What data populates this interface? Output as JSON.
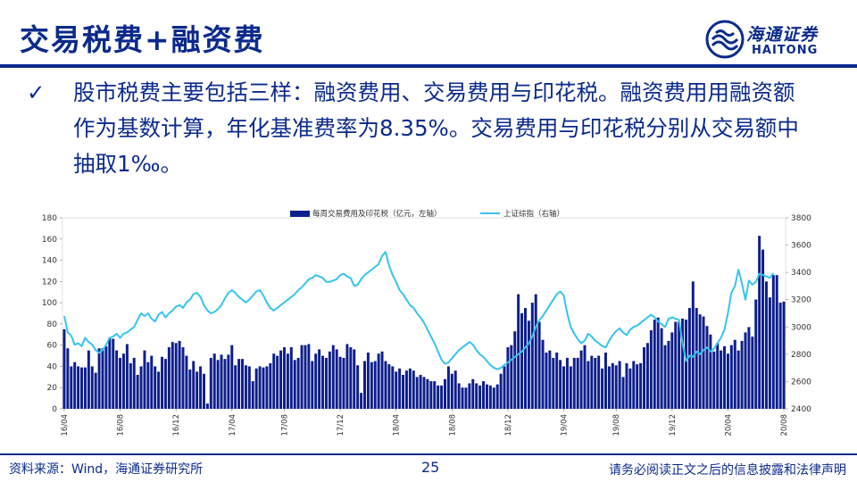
{
  "header": {
    "title": "交易税费+融资费",
    "logo_cn": "海通证券",
    "logo_en": "HAITONG"
  },
  "bullet": {
    "mark": "✓",
    "text": "股市税费主要包括三样：融资费用、交易费用与印花税。融资费用用融资额作为基数计算，年化基准费率为8.35%。交易费用与印花税分别从交易额中抽取1‰。"
  },
  "colors": {
    "bar": "#0d1e8c",
    "line": "#35c4ee",
    "brand": "#0b2a8c"
  },
  "chart_data": {
    "type": "bar+line",
    "x_tick_labels": [
      "16/04",
      "16/08",
      "16/12",
      "17/04",
      "17/08",
      "17/12",
      "18/04",
      "18/08",
      "18/12",
      "19/04",
      "19/08",
      "19/12",
      "20/04",
      "20/08"
    ],
    "y_left": {
      "lim": [
        0,
        180
      ],
      "ticks": [
        0,
        20,
        40,
        60,
        80,
        100,
        120,
        140,
        160,
        180
      ]
    },
    "y_right": {
      "lim": [
        2400,
        3800
      ],
      "ticks": [
        2400,
        2600,
        2800,
        3000,
        3200,
        3400,
        3600,
        3800
      ]
    },
    "series": [
      {
        "name": "每周交易费用及印花税（亿元，左轴）",
        "axis": "left",
        "values": [
          75,
          57,
          40,
          44,
          40,
          39,
          39,
          55,
          40,
          34,
          57,
          57,
          59,
          67,
          66,
          55,
          48,
          52,
          61,
          43,
          48,
          32,
          40,
          55,
          44,
          50,
          40,
          35,
          49,
          47,
          58,
          63,
          62,
          64,
          58,
          50,
          37,
          45,
          35,
          40,
          33,
          5,
          48,
          52,
          46,
          51,
          47,
          51,
          60,
          41,
          47,
          47,
          41,
          40,
          26,
          38,
          40,
          39,
          40,
          43,
          52,
          50,
          55,
          58,
          52,
          58,
          46,
          48,
          60,
          60,
          61,
          45,
          52,
          56,
          50,
          48,
          54,
          60,
          56,
          49,
          48,
          61,
          58,
          56,
          41,
          15,
          45,
          53,
          44,
          45,
          52,
          54,
          45,
          42,
          40,
          35,
          38,
          32,
          36,
          38,
          36,
          30,
          32,
          30,
          28,
          26,
          26,
          22,
          22,
          28,
          40,
          33,
          36,
          24,
          20,
          20,
          24,
          28,
          24,
          22,
          26,
          23,
          22,
          20,
          23,
          33,
          40,
          58,
          60,
          73,
          108,
          90,
          95,
          83,
          100,
          108,
          82,
          65,
          53,
          55,
          48,
          53,
          46,
          40,
          48,
          40,
          48,
          48,
          55,
          60,
          45,
          50,
          48,
          50,
          38,
          53,
          40,
          43,
          41,
          45,
          30,
          43,
          38,
          45,
          42,
          43,
          58,
          62,
          74,
          84,
          86,
          76,
          60,
          64,
          72,
          82,
          82,
          85,
          84,
          95,
          120,
          95,
          89,
          87,
          78,
          70,
          54,
          62,
          55,
          59,
          52,
          60,
          65,
          55,
          64,
          72,
          77,
          68,
          103,
          163,
          150,
          120,
          105,
          126,
          126,
          100,
          101
        ]
      },
      {
        "name": "上证综指（右轴）",
        "axis": "right",
        "values": [
          3080,
          2960,
          2935,
          2870,
          2880,
          2860,
          2920,
          2890,
          2870,
          2830,
          2810,
          2830,
          2870,
          2920,
          2930,
          2950,
          2920,
          2950,
          2960,
          2980,
          3000,
          3050,
          3100,
          3080,
          3100,
          3060,
          3040,
          3090,
          3110,
          3070,
          3100,
          3120,
          3150,
          3160,
          3140,
          3180,
          3200,
          3240,
          3250,
          3220,
          3160,
          3120,
          3100,
          3110,
          3130,
          3160,
          3210,
          3250,
          3270,
          3250,
          3220,
          3200,
          3180,
          3200,
          3230,
          3260,
          3270,
          3230,
          3180,
          3140,
          3120,
          3140,
          3160,
          3180,
          3200,
          3220,
          3240,
          3270,
          3290,
          3320,
          3350,
          3360,
          3380,
          3370,
          3360,
          3330,
          3330,
          3340,
          3350,
          3380,
          3390,
          3370,
          3360,
          3300,
          3310,
          3350,
          3380,
          3400,
          3420,
          3440,
          3460,
          3520,
          3550,
          3450,
          3380,
          3330,
          3270,
          3240,
          3200,
          3160,
          3140,
          3100,
          3070,
          3030,
          2980,
          2930,
          2880,
          2820,
          2760,
          2730,
          2740,
          2770,
          2800,
          2830,
          2850,
          2870,
          2890,
          2870,
          2830,
          2800,
          2780,
          2750,
          2720,
          2700,
          2690,
          2700,
          2720,
          2740,
          2760,
          2780,
          2800,
          2820,
          2850,
          2880,
          2930,
          3000,
          3050,
          3080,
          3120,
          3160,
          3200,
          3240,
          3260,
          3230,
          3100,
          3000,
          2950,
          2910,
          2880,
          2900,
          2950,
          2930,
          2900,
          2880,
          2860,
          2850,
          2900,
          2940,
          2970,
          2990,
          2960,
          2940,
          2980,
          3000,
          3010,
          3030,
          3050,
          3070,
          3090,
          3070,
          3040,
          3020,
          3000,
          3060,
          3070,
          3060,
          3050,
          2880,
          2750,
          2790,
          2780,
          2820,
          2800,
          2830,
          2850,
          2820,
          2840,
          2880,
          2920,
          2980,
          3100,
          3250,
          3300,
          3420,
          3320,
          3200,
          3340,
          3310,
          3330,
          3390,
          3380,
          3370,
          3360,
          3395
        ]
      }
    ]
  },
  "footer": {
    "source": "资料来源：Wind，海通证券研究所",
    "page": "25",
    "disclaimer": "请务必阅读正文之后的信息披露和法律声明"
  }
}
